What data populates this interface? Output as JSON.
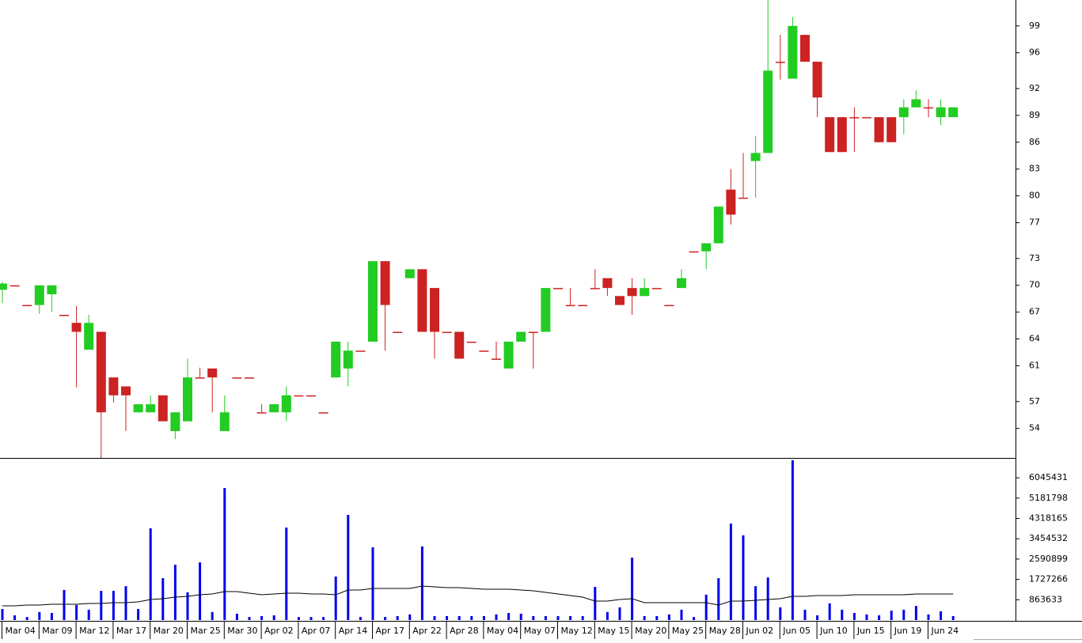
{
  "chart_data": [
    {
      "type": "candlestick",
      "categories": [
        "Mar 04",
        null,
        null,
        "Mar 09",
        null,
        null,
        "Mar 12",
        null,
        null,
        "Mar 17",
        null,
        null,
        "Mar 20",
        null,
        null,
        "Mar 25",
        null,
        null,
        "Mar 30",
        null,
        null,
        "Apr 02",
        null,
        null,
        "Apr 07",
        null,
        null,
        "Apr 14",
        null,
        null,
        "Apr 17",
        null,
        null,
        "Apr 22",
        null,
        null,
        "Apr 28",
        null,
        null,
        "May 04",
        null,
        null,
        "May 07",
        null,
        null,
        "May 12",
        null,
        null,
        "May 15",
        null,
        null,
        "May 20",
        null,
        null,
        "May 25",
        null,
        null,
        "May 28",
        null,
        null,
        "Jun 02",
        null,
        null,
        "Jun 05",
        null,
        null,
        "Jun 10",
        null,
        null,
        "Jun 15",
        null,
        null,
        "Jun 19",
        null,
        null,
        "Jun 24",
        null,
        null
      ],
      "open": [
        69.5,
        70.0,
        67.8,
        67.8,
        69.0,
        66.7,
        65.8,
        62.8,
        64.8,
        59.7,
        58.7,
        55.8,
        55.8,
        57.7,
        53.7,
        54.8,
        59.7,
        60.7,
        53.7,
        59.7,
        59.7,
        55.8,
        55.8,
        55.8,
        57.7,
        57.7,
        55.8,
        59.7,
        60.7,
        62.7,
        63.7,
        72.7,
        64.8,
        70.8,
        71.8,
        69.7,
        64.8,
        64.8,
        63.7,
        62.7,
        61.8,
        60.7,
        63.7,
        64.8,
        64.8,
        69.7,
        67.8,
        67.8,
        69.7,
        70.8,
        68.8,
        69.7,
        68.8,
        69.7,
        67.8,
        69.7,
        73.8,
        73.8,
        74.7,
        80.7,
        79.8,
        83.9,
        84.8,
        95.0,
        93.1,
        98.0,
        95.0,
        88.8,
        88.8,
        88.8,
        88.8,
        88.8,
        88.8,
        88.8,
        89.9,
        89.9,
        88.8,
        88.8
      ],
      "high": [
        70.4,
        70.0,
        67.8,
        70.0,
        70.0,
        66.7,
        67.7,
        66.7,
        64.8,
        59.7,
        58.7,
        56.7,
        57.7,
        57.7,
        55.8,
        61.8,
        60.8,
        60.7,
        57.7,
        59.7,
        59.7,
        56.7,
        56.7,
        58.7,
        57.7,
        57.7,
        55.8,
        63.7,
        63.7,
        62.7,
        72.7,
        72.7,
        64.8,
        71.8,
        71.8,
        69.7,
        64.8,
        64.8,
        63.7,
        62.7,
        63.7,
        63.7,
        64.8,
        64.8,
        69.7,
        69.7,
        69.7,
        67.8,
        71.8,
        70.8,
        68.8,
        70.8,
        70.8,
        69.7,
        67.8,
        71.8,
        73.8,
        74.7,
        78.8,
        83.0,
        84.8,
        86.7,
        101.9,
        98.0,
        100.0,
        98.0,
        95.0,
        88.8,
        88.8,
        89.9,
        88.8,
        88.8,
        88.8,
        90.8,
        91.8,
        90.8,
        90.8,
        89.9
      ],
      "low": [
        68.0,
        70.0,
        67.8,
        66.8,
        67.0,
        66.7,
        58.6,
        62.8,
        50.7,
        56.9,
        53.7,
        55.8,
        55.8,
        54.8,
        52.8,
        54.8,
        59.7,
        55.8,
        53.7,
        59.7,
        59.7,
        55.8,
        55.8,
        54.8,
        57.7,
        57.7,
        55.8,
        59.7,
        58.7,
        62.7,
        63.7,
        62.7,
        64.8,
        70.8,
        64.8,
        61.8,
        64.8,
        61.8,
        63.7,
        62.7,
        61.8,
        60.7,
        63.7,
        60.7,
        64.8,
        69.7,
        67.8,
        67.8,
        69.7,
        68.8,
        67.8,
        66.7,
        68.8,
        69.7,
        67.8,
        69.7,
        73.8,
        71.8,
        74.7,
        76.8,
        79.8,
        79.8,
        84.8,
        93.0,
        93.1,
        95.0,
        88.8,
        84.9,
        84.9,
        84.9,
        88.8,
        86.0,
        86.0,
        86.9,
        89.9,
        88.8,
        87.9,
        88.8
      ],
      "close": [
        70.2,
        70.0,
        67.8,
        70.0,
        70.0,
        66.7,
        64.8,
        65.8,
        55.8,
        57.7,
        57.7,
        56.7,
        56.7,
        54.8,
        55.8,
        59.7,
        59.7,
        59.7,
        55.8,
        59.7,
        59.7,
        55.8,
        56.7,
        57.7,
        57.7,
        57.7,
        55.8,
        63.7,
        62.7,
        62.7,
        72.7,
        67.8,
        64.8,
        71.8,
        64.8,
        64.8,
        64.8,
        61.8,
        63.7,
        62.7,
        61.8,
        63.7,
        64.8,
        64.8,
        69.7,
        69.7,
        67.8,
        67.8,
        69.7,
        69.7,
        67.8,
        68.8,
        69.7,
        69.7,
        67.8,
        70.8,
        73.8,
        74.7,
        78.8,
        77.9,
        79.8,
        84.8,
        94.0,
        95.0,
        99.0,
        95.0,
        91.0,
        84.9,
        84.9,
        88.8,
        88.8,
        86.0,
        86.0,
        89.9,
        90.8,
        89.9,
        89.9,
        89.9
      ],
      "up_color": "#22cc22",
      "down_color": "#cc2222",
      "ylim": [
        50.7,
        101.9
      ],
      "yticks": [
        54,
        57,
        61,
        64,
        67,
        70,
        73,
        77,
        80,
        83,
        86,
        89,
        92,
        96,
        99
      ]
    },
    {
      "type": "bar",
      "series": [
        {
          "type": "bar",
          "color": "#0000ee",
          "values": [
            470000,
            200000,
            130000,
            340000,
            300000,
            1280000,
            640000,
            440000,
            1240000,
            1240000,
            1440000,
            470000,
            3900000,
            1780000,
            2350000,
            1180000,
            2450000,
            340000,
            5610000,
            270000,
            130000,
            170000,
            200000,
            3930000,
            130000,
            130000,
            130000,
            1850000,
            4470000,
            130000,
            3090000,
            130000,
            170000,
            240000,
            3130000,
            170000,
            170000,
            170000,
            170000,
            170000,
            240000,
            300000,
            270000,
            170000,
            170000,
            170000,
            170000,
            170000,
            1410000,
            340000,
            540000,
            2650000,
            170000,
            170000,
            240000,
            440000,
            130000,
            1080000,
            1780000,
            4100000,
            3600000,
            1440000,
            1810000,
            540000,
            6790000,
            440000,
            200000,
            710000,
            440000,
            300000,
            240000,
            200000,
            400000,
            440000,
            600000,
            240000,
            370000,
            170000
          ]
        },
        {
          "type": "line",
          "color": "#000000",
          "values": [
            605000,
            605000,
            638000,
            638000,
            672000,
            672000,
            672000,
            706000,
            706000,
            739000,
            739000,
            773000,
            874000,
            907000,
            975000,
            1008000,
            1075000,
            1109000,
            1210000,
            1210000,
            1143000,
            1075000,
            1109000,
            1143000,
            1143000,
            1109000,
            1109000,
            1075000,
            1277000,
            1277000,
            1344000,
            1344000,
            1344000,
            1344000,
            1445000,
            1411000,
            1378000,
            1378000,
            1344000,
            1311000,
            1311000,
            1311000,
            1277000,
            1243000,
            1176000,
            1109000,
            1042000,
            975000,
            807000,
            807000,
            874000,
            907000,
            739000,
            739000,
            739000,
            739000,
            739000,
            739000,
            638000,
            807000,
            807000,
            840000,
            874000,
            907000,
            1008000,
            1008000,
            1042000,
            1042000,
            1042000,
            1075000,
            1075000,
            1075000,
            1075000,
            1075000,
            1109000,
            1109000,
            1109000,
            1109000
          ]
        }
      ],
      "ylim": [
        0,
        6890000
      ],
      "yticks": [
        863633,
        1727266,
        2590899,
        3454532,
        4318165,
        5181798,
        6045431
      ]
    }
  ]
}
